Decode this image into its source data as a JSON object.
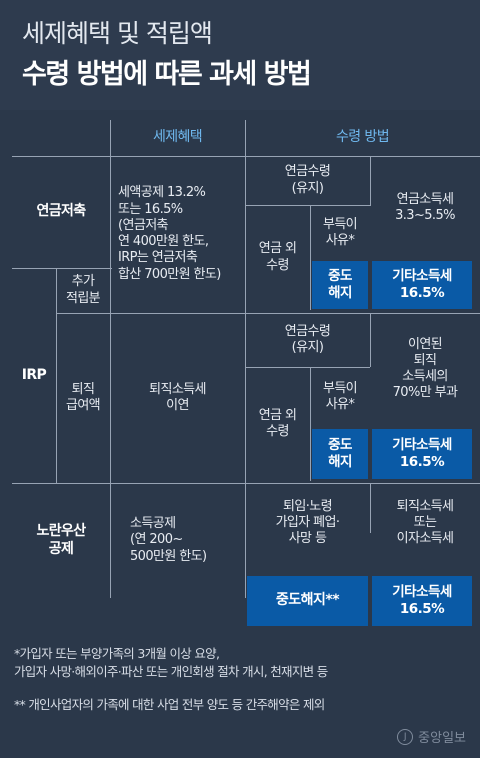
{
  "header": {
    "title_line1": "세제혜택 및 적립액",
    "title_line2": "수령 방법에 따른 과세 방법"
  },
  "table": {
    "col_headers": {
      "tax_benefit": "세제혜택",
      "receipt_method": "수령 방법"
    },
    "pension_savings": {
      "label": "연금저축",
      "tax_benefit": "세액공제 13.2%\n또는 16.5%\n(연금저축\n연 400만원 한도,\nIRP는 연금저축\n합산 700만원 한도)",
      "annuity_receipt": "연금수령\n(유지)",
      "annuity_tax": "연금소득세\n3.3~5.5%",
      "non_annuity_receipt": "연금 외\n수령",
      "unavoidable_reason": "부득이\n사유*",
      "early_termination": "중도\n해지",
      "other_income_tax": "기타소득세\n16.5%"
    },
    "irp": {
      "label": "IRP",
      "additional": "추가\n적립분",
      "retirement": "퇴직\n급여액",
      "retirement_tax": "퇴직소득세\n이연",
      "annuity_receipt": "연금수령\n(유지)",
      "annuity_tax": "이연된\n퇴직\n소득세의\n70%만 부과",
      "non_annuity_receipt": "연금 외\n수령",
      "unavoidable_reason": "부득이\n사유*",
      "early_termination": "중도\n해지",
      "other_income_tax": "기타소득세\n16.5%"
    },
    "yellow_umbrella": {
      "label": "노란우산\n공제",
      "tax_benefit": "소득공제\n(연 200~\n500만원 한도)",
      "reasons": "퇴임·노령\n가입자 폐업·\n사망 등",
      "reasons_tax": "퇴직소득세\n또는\n이자소득세",
      "early_termination": "중도해지**",
      "other_income_tax": "기타소득세\n16.5%"
    }
  },
  "footnotes": {
    "note1": "*가입자 또는 부양가족의 3개월 이상 요양,\n  가입자 사망·해외이주·파산 또는 개인회생 절차 개시, 천재지변 등",
    "note2": "** 개인사업자의 가족에 대한 사업 전부 양도 등 간주해약은 제외"
  },
  "logo": {
    "text": "중앙일보",
    "mark": "J"
  },
  "colors": {
    "background": "#2e3b4e",
    "accent_blue": "#0a5aa6",
    "header_text": "#6fb8ee",
    "rule": "#97a3b4"
  }
}
